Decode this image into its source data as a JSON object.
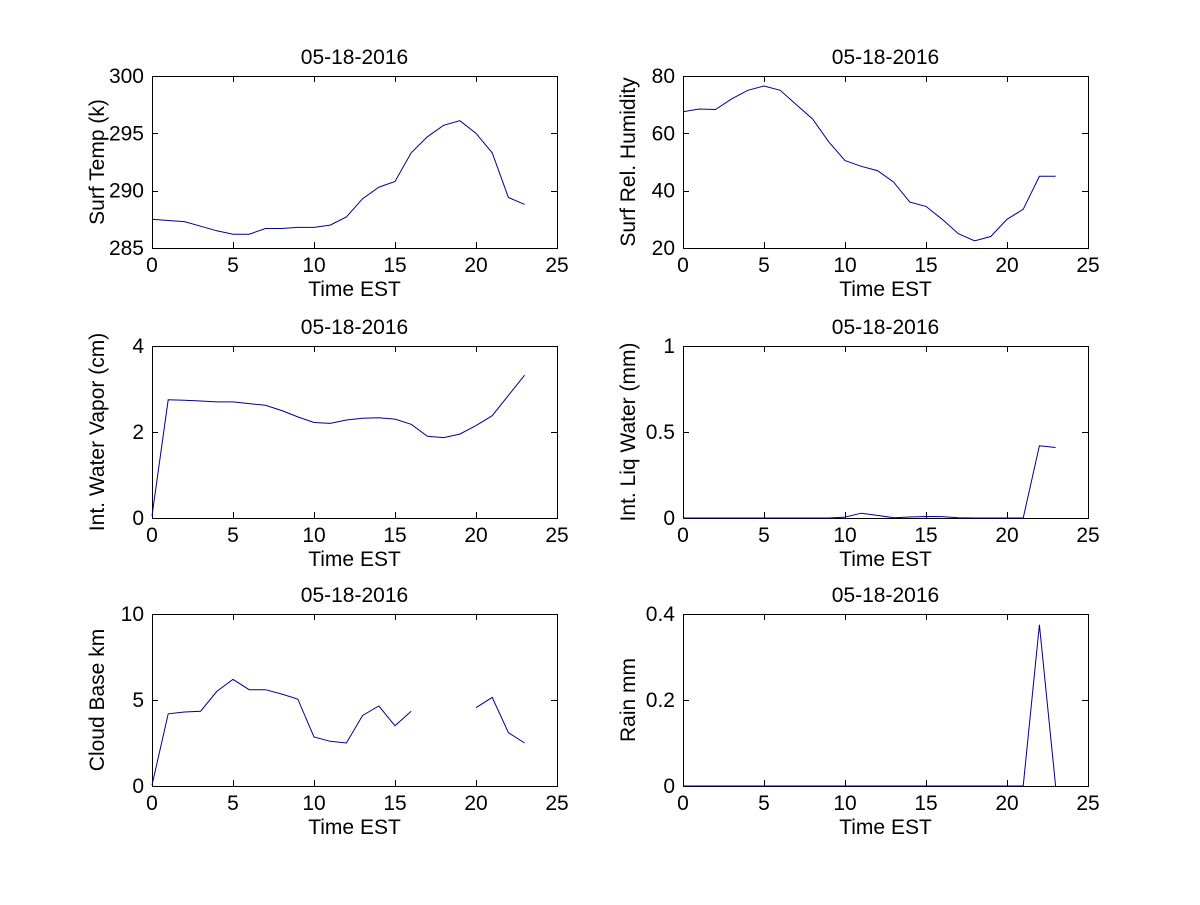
{
  "figure": {
    "background": "#ffffff",
    "line_color": "#00008B",
    "axis_color": "#000000",
    "text_color": "#000000"
  },
  "chart_data": [
    {
      "id": "surf-temp",
      "type": "line",
      "title": "05-18-2016",
      "xlabel": "Time EST",
      "ylabel": "Surf Temp (k)",
      "xlim": [
        0,
        25
      ],
      "ylim": [
        285,
        300
      ],
      "xticks": [
        0,
        5,
        10,
        15,
        20,
        25
      ],
      "xticklabels": [
        "0",
        "5",
        "10",
        "15",
        "20",
        "25"
      ],
      "yticks": [
        285,
        290,
        295,
        300
      ],
      "yticklabels": [
        "285",
        "290",
        "295",
        "300"
      ],
      "grid": false,
      "legend": null,
      "x": [
        0,
        1,
        2,
        3,
        4,
        5,
        6,
        7,
        8,
        9,
        10,
        11,
        12,
        13,
        14,
        15,
        16,
        17,
        18,
        19,
        20,
        21,
        22,
        23
      ],
      "y": [
        287.5,
        287.4,
        287.3,
        286.9,
        286.5,
        286.2,
        286.2,
        286.7,
        286.7,
        286.8,
        286.8,
        287.0,
        287.7,
        289.3,
        290.3,
        290.8,
        293.3,
        294.7,
        295.7,
        296.1,
        295.0,
        293.3,
        289.4,
        288.8
      ]
    },
    {
      "id": "surf-rel-humidity",
      "type": "line",
      "title": "05-18-2016",
      "xlabel": "Time EST",
      "ylabel": "Surf Rel. Humidity",
      "xlim": [
        0,
        25
      ],
      "ylim": [
        20,
        80
      ],
      "xticks": [
        0,
        5,
        10,
        15,
        20,
        25
      ],
      "xticklabels": [
        "0",
        "5",
        "10",
        "15",
        "20",
        "25"
      ],
      "yticks": [
        20,
        40,
        60,
        80
      ],
      "yticklabels": [
        "20",
        "40",
        "60",
        "80"
      ],
      "grid": false,
      "legend": null,
      "x": [
        0,
        1,
        2,
        3,
        4,
        5,
        6,
        7,
        8,
        9,
        10,
        11,
        12,
        13,
        14,
        15,
        16,
        17,
        18,
        19,
        20,
        21,
        22,
        23
      ],
      "y": [
        67.5,
        68.5,
        68.3,
        72,
        75,
        76.5,
        75,
        70,
        65,
        57,
        50.5,
        48.5,
        47,
        43,
        36,
        34.5,
        30,
        25,
        22.5,
        24,
        30,
        33.5,
        45,
        45
      ]
    },
    {
      "id": "int-water-vapor",
      "type": "line",
      "title": "05-18-2016",
      "xlabel": "Time EST",
      "ylabel": "Int. Water Vapor (cm)",
      "xlim": [
        0,
        25
      ],
      "ylim": [
        0,
        4
      ],
      "xticks": [
        0,
        5,
        10,
        15,
        20,
        25
      ],
      "xticklabels": [
        "0",
        "5",
        "10",
        "15",
        "20",
        "25"
      ],
      "yticks": [
        0,
        2,
        4
      ],
      "yticklabels": [
        "0",
        "2",
        "4"
      ],
      "grid": false,
      "legend": null,
      "x": [
        0,
        1,
        2,
        3,
        4,
        5,
        6,
        7,
        8,
        9,
        10,
        11,
        12,
        13,
        14,
        15,
        16,
        17,
        18,
        19,
        20,
        21,
        22,
        23
      ],
      "y": [
        0.05,
        2.75,
        2.74,
        2.72,
        2.7,
        2.7,
        2.66,
        2.62,
        2.5,
        2.35,
        2.22,
        2.2,
        2.28,
        2.32,
        2.33,
        2.3,
        2.18,
        1.9,
        1.87,
        1.95,
        2.15,
        2.38,
        2.85,
        3.32
      ]
    },
    {
      "id": "int-liq-water",
      "type": "line",
      "title": "05-18-2016",
      "xlabel": "Time EST",
      "ylabel": "Int. Liq Water (mm)",
      "xlim": [
        0,
        25
      ],
      "ylim": [
        0,
        1
      ],
      "xticks": [
        0,
        5,
        10,
        15,
        20,
        25
      ],
      "xticklabels": [
        "0",
        "5",
        "10",
        "15",
        "20",
        "25"
      ],
      "yticks": [
        0,
        0.5,
        1
      ],
      "yticklabels": [
        "0",
        "0.5",
        "1"
      ],
      "grid": false,
      "legend": null,
      "x": [
        0,
        1,
        2,
        3,
        4,
        5,
        6,
        7,
        8,
        9,
        10,
        11,
        12,
        13,
        14,
        15,
        16,
        17,
        18,
        19,
        20,
        21,
        22,
        23
      ],
      "y": [
        0,
        0,
        0,
        0,
        0,
        0,
        0,
        0,
        0,
        0,
        0.005,
        0.028,
        0.015,
        0.002,
        0.006,
        0.009,
        0.008,
        0.002,
        0,
        0,
        0,
        0,
        0.42,
        0.41
      ]
    },
    {
      "id": "cloud-base",
      "type": "line",
      "title": "05-18-2016",
      "xlabel": "Time EST",
      "ylabel": "Cloud Base km",
      "xlim": [
        0,
        25
      ],
      "ylim": [
        0,
        10
      ],
      "xticks": [
        0,
        5,
        10,
        15,
        20,
        25
      ],
      "xticklabels": [
        "0",
        "5",
        "10",
        "15",
        "20",
        "25"
      ],
      "yticks": [
        0,
        5,
        10
      ],
      "yticklabels": [
        "0",
        "5",
        "10"
      ],
      "grid": false,
      "legend": null,
      "x": [
        0,
        1,
        2,
        3,
        4,
        5,
        6,
        7,
        8,
        9,
        10,
        11,
        12,
        13,
        14,
        15,
        16,
        17,
        18,
        19,
        20,
        21,
        22,
        23
      ],
      "y": [
        0.05,
        4.2,
        4.3,
        4.35,
        5.5,
        6.2,
        5.6,
        5.6,
        5.35,
        5.05,
        2.85,
        2.6,
        2.5,
        4.1,
        4.65,
        3.5,
        4.35,
        null,
        null,
        null,
        4.55,
        5.15,
        3.1,
        2.5
      ]
    },
    {
      "id": "rain",
      "type": "line",
      "title": "05-18-2016",
      "xlabel": "Time EST",
      "ylabel": "Rain mm",
      "xlim": [
        0,
        25
      ],
      "ylim": [
        0,
        0.4
      ],
      "xticks": [
        0,
        5,
        10,
        15,
        20,
        25
      ],
      "xticklabels": [
        "0",
        "5",
        "10",
        "15",
        "20",
        "25"
      ],
      "yticks": [
        0,
        0.2,
        0.4
      ],
      "yticklabels": [
        "0",
        "0.2",
        "0.4"
      ],
      "grid": false,
      "legend": null,
      "x": [
        0,
        1,
        2,
        3,
        4,
        5,
        6,
        7,
        8,
        9,
        10,
        11,
        12,
        13,
        14,
        15,
        16,
        17,
        18,
        19,
        20,
        21,
        22,
        23
      ],
      "y": [
        0,
        0,
        0,
        0,
        0,
        0,
        0,
        0,
        0,
        0,
        0,
        0,
        0,
        0,
        0,
        0,
        0,
        0,
        0,
        0,
        0,
        0,
        0.375,
        0
      ]
    }
  ]
}
